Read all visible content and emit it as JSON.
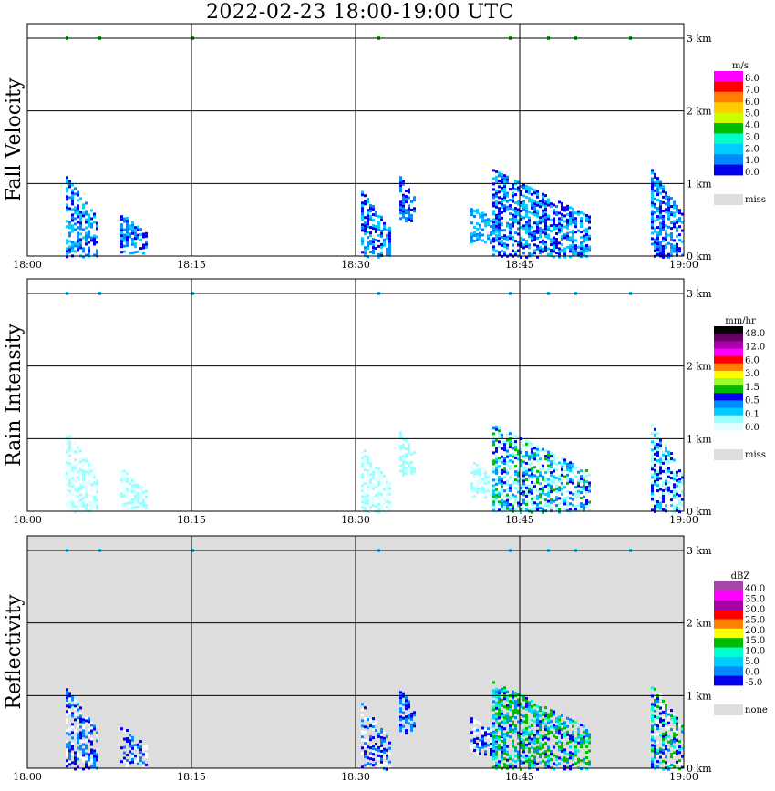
{
  "title": "2022-02-23  18:00-19:00 UTC",
  "chart_data": [
    {
      "type": "heatmap",
      "name": "fall-velocity",
      "ylabel": "Fall Velocity",
      "x_ticks": [
        "18:00",
        "18:15",
        "18:30",
        "18:45",
        "19:00"
      ],
      "y_ticks": [
        "0 km",
        "1 km",
        "2 km",
        "3 km"
      ],
      "ylim_km": [
        0,
        3.2
      ],
      "xlim_min": [
        0,
        60
      ],
      "background": "#ffffff",
      "legend": {
        "unit": "m/s",
        "labels": [
          "8.0",
          "7.0",
          "6.0",
          "5.0",
          "4.0",
          "3.0",
          "2.0",
          "1.0",
          "0.0"
        ],
        "colors": [
          "#ff00ff",
          "#ff0000",
          "#ff8000",
          "#ffcc00",
          "#ccff00",
          "#00bb00",
          "#00ffcc",
          "#00ccff",
          "#0088ff",
          "#0000ee"
        ],
        "missing_label": "miss",
        "missing_color": "#dddddd"
      },
      "echoes": [
        {
          "t": [
            3.5,
            6.5
          ],
          "h": [
            0.0,
            1.1
          ],
          "cols": [
            "#0000ee",
            "#0088ff",
            "#00ccff"
          ]
        },
        {
          "t": [
            8.5,
            11.0
          ],
          "h": [
            0.05,
            0.6
          ],
          "cols": [
            "#0088ff",
            "#00ccff",
            "#0000ee"
          ]
        },
        {
          "t": [
            30.5,
            33.0
          ],
          "h": [
            0.0,
            0.9
          ],
          "cols": [
            "#0088ff",
            "#00ccff",
            "#0000ee"
          ]
        },
        {
          "t": [
            34.0,
            35.5
          ],
          "h": [
            0.5,
            1.1
          ],
          "cols": [
            "#0000ee",
            "#0088ff"
          ]
        },
        {
          "t": [
            40.5,
            43.5
          ],
          "h": [
            0.2,
            0.7
          ],
          "cols": [
            "#0088ff",
            "#00ccff"
          ]
        },
        {
          "t": [
            42.5,
            51.5
          ],
          "h": [
            0.0,
            1.2
          ],
          "cols": [
            "#0000ee",
            "#0088ff",
            "#00ccff",
            "#0000ee",
            "#00ccff"
          ]
        },
        {
          "t": [
            57.0,
            60.0
          ],
          "h": [
            0.0,
            1.2
          ],
          "cols": [
            "#0000ee",
            "#0088ff",
            "#00ccff"
          ]
        }
      ],
      "top_specks": [
        3.5,
        6.5,
        15.0,
        32.0,
        44.0,
        47.5,
        50.0,
        55.0
      ]
    },
    {
      "type": "heatmap",
      "name": "rain-intensity",
      "ylabel": "Rain Intensity",
      "x_ticks": [
        "18:00",
        "18:15",
        "18:30",
        "18:45",
        "19:00"
      ],
      "y_ticks": [
        "0 km",
        "1 km",
        "2 km",
        "3 km"
      ],
      "ylim_km": [
        0,
        3.2
      ],
      "xlim_min": [
        0,
        60
      ],
      "background": "#ffffff",
      "legend": {
        "unit": "mm/hr",
        "labels": [
          "48.0",
          "12.0",
          "6.0",
          "3.0",
          "1.5",
          "0.5",
          "0.1",
          "0.0"
        ],
        "colors": [
          "#000000",
          "#660066",
          "#aa00aa",
          "#ff00ff",
          "#ff0000",
          "#ff8000",
          "#ffff00",
          "#99ff33",
          "#00bb00",
          "#0000ee",
          "#0088ff",
          "#00ccff",
          "#99ffff",
          "#ddffff"
        ],
        "missing_label": "miss",
        "missing_color": "#dddddd"
      },
      "echoes": [
        {
          "t": [
            3.5,
            6.5
          ],
          "h": [
            0.0,
            1.1
          ],
          "cols": [
            "#99ffff",
            "#ddffff"
          ]
        },
        {
          "t": [
            8.5,
            11.0
          ],
          "h": [
            0.05,
            0.6
          ],
          "cols": [
            "#99ffff",
            "#ddffff"
          ]
        },
        {
          "t": [
            30.5,
            33.0
          ],
          "h": [
            0.0,
            0.9
          ],
          "cols": [
            "#99ffff",
            "#ddffff"
          ]
        },
        {
          "t": [
            34.0,
            35.5
          ],
          "h": [
            0.5,
            1.1
          ],
          "cols": [
            "#99ffff"
          ]
        },
        {
          "t": [
            40.5,
            43.5
          ],
          "h": [
            0.2,
            0.7
          ],
          "cols": [
            "#99ffff",
            "#ddffff"
          ]
        },
        {
          "t": [
            42.5,
            51.5
          ],
          "h": [
            0.0,
            1.2
          ],
          "cols": [
            "#99ffff",
            "#00ccff",
            "#0088ff",
            "#0000ee",
            "#00bb00",
            "#99ffff"
          ]
        },
        {
          "t": [
            57.0,
            60.0
          ],
          "h": [
            0.0,
            1.2
          ],
          "cols": [
            "#99ffff",
            "#00ccff",
            "#0000ee"
          ]
        }
      ],
      "top_specks": [
        3.5,
        6.5,
        15.0,
        32.0,
        44.0,
        47.5,
        50.0,
        55.0
      ]
    },
    {
      "type": "heatmap",
      "name": "reflectivity",
      "ylabel": "Reflectivity",
      "x_ticks": [
        "18:00",
        "18:15",
        "18:30",
        "18:45",
        "19:00"
      ],
      "y_ticks": [
        "0 km",
        "1 km",
        "2 km",
        "3 km"
      ],
      "ylim_km": [
        0,
        3.2
      ],
      "xlim_min": [
        0,
        60
      ],
      "background": "#dddddd",
      "legend": {
        "unit": "dBZ",
        "labels": [
          "40.0",
          "35.0",
          "30.0",
          "25.0",
          "20.0",
          "15.0",
          "10.0",
          "5.0",
          "0.0",
          "-5.0"
        ],
        "colors": [
          "#aa44aa",
          "#ff00ff",
          "#aa00aa",
          "#ff0000",
          "#ff8000",
          "#ffff00",
          "#00bb00",
          "#00ffcc",
          "#00ccff",
          "#0088ff",
          "#0000ee"
        ],
        "missing_label": "none",
        "missing_color": "#dddddd"
      },
      "echoes": [
        {
          "t": [
            3.5,
            6.5
          ],
          "h": [
            0.0,
            1.1
          ],
          "cols": [
            "#0000ee",
            "#0088ff",
            "#ffffff"
          ]
        },
        {
          "t": [
            8.5,
            11.0
          ],
          "h": [
            0.05,
            0.6
          ],
          "cols": [
            "#0000ee",
            "#0088ff",
            "#ffffff"
          ]
        },
        {
          "t": [
            30.5,
            33.0
          ],
          "h": [
            0.0,
            0.9
          ],
          "cols": [
            "#0000ee",
            "#0088ff",
            "#ffffff"
          ]
        },
        {
          "t": [
            34.0,
            35.5
          ],
          "h": [
            0.5,
            1.1
          ],
          "cols": [
            "#0000ee",
            "#0088ff"
          ]
        },
        {
          "t": [
            40.5,
            43.5
          ],
          "h": [
            0.2,
            0.7
          ],
          "cols": [
            "#0000ee",
            "#ffffff",
            "#0088ff"
          ]
        },
        {
          "t": [
            42.5,
            51.5
          ],
          "h": [
            0.0,
            1.2
          ],
          "cols": [
            "#0000ee",
            "#0088ff",
            "#00ccff",
            "#00ffcc",
            "#00bb00",
            "#00bb00"
          ]
        },
        {
          "t": [
            57.0,
            60.0
          ],
          "h": [
            0.0,
            1.2
          ],
          "cols": [
            "#0000ee",
            "#0088ff",
            "#00ffcc",
            "#00bb00",
            "#ffffff"
          ]
        }
      ],
      "top_specks": [
        3.5,
        6.5,
        15.0,
        32.0,
        44.0,
        47.5,
        50.0,
        55.0
      ]
    }
  ]
}
